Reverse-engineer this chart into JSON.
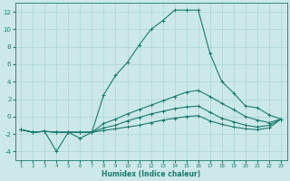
{
  "title": "",
  "xlabel": "Humidex (Indice chaleur)",
  "x": [
    1,
    2,
    3,
    4,
    5,
    6,
    7,
    8,
    9,
    10,
    11,
    12,
    13,
    14,
    15,
    16,
    17,
    18,
    19,
    20,
    21,
    22,
    23
  ],
  "line1": [
    -1.5,
    -1.8,
    -1.7,
    -4.0,
    -1.8,
    -2.5,
    -1.8,
    2.5,
    4.7,
    6.2,
    8.2,
    10.0,
    11.0,
    12.2,
    12.2,
    12.2,
    7.2,
    4.0,
    2.7,
    1.2,
    1.0,
    0.2,
    -0.3
  ],
  "line2": [
    -1.5,
    -1.8,
    -1.7,
    -1.8,
    -1.8,
    -1.8,
    -1.8,
    -0.8,
    -0.3,
    0.3,
    0.8,
    1.3,
    1.8,
    2.3,
    2.8,
    3.0,
    2.3,
    1.5,
    0.8,
    0.0,
    -0.4,
    -0.7,
    -0.3
  ],
  "line3": [
    -1.5,
    -1.8,
    -1.7,
    -1.8,
    -1.8,
    -1.8,
    -1.8,
    -1.3,
    -1.0,
    -0.5,
    -0.1,
    0.3,
    0.6,
    0.9,
    1.1,
    1.2,
    0.5,
    -0.2,
    -0.6,
    -1.0,
    -1.2,
    -1.0,
    -0.3
  ],
  "line4": [
    -1.5,
    -1.8,
    -1.7,
    -1.8,
    -1.8,
    -1.8,
    -1.8,
    -1.6,
    -1.4,
    -1.2,
    -1.0,
    -0.7,
    -0.4,
    -0.2,
    0.0,
    0.1,
    -0.5,
    -0.9,
    -1.2,
    -1.4,
    -1.5,
    -1.3,
    -0.3
  ],
  "line_color": "#1a7a6e",
  "bg_color": "#cce8e8",
  "grid_color": "#aad4d4",
  "ylim": [
    -5,
    13
  ],
  "yticks": [
    -4,
    -2,
    0,
    2,
    4,
    6,
    8,
    10,
    12
  ],
  "xlim": [
    0.5,
    23.5
  ],
  "xticks": [
    1,
    2,
    3,
    4,
    5,
    6,
    7,
    8,
    9,
    10,
    11,
    12,
    13,
    14,
    15,
    16,
    17,
    18,
    19,
    20,
    21,
    22,
    23
  ]
}
